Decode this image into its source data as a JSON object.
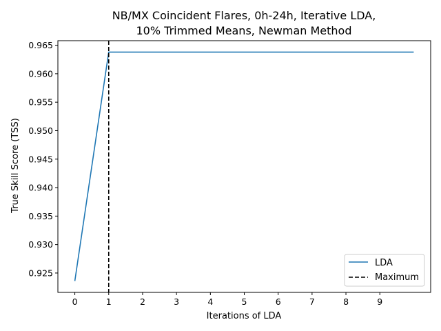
{
  "chart_data": {
    "type": "line",
    "title_lines": [
      "NB/MX Coincident Flares, 0h-24h, Iterative LDA,",
      "10% Trimmed Means, Newman Method"
    ],
    "xlabel": "Iterations of LDA",
    "ylabel": "True Skill Score (TSS)",
    "xlim": [
      -0.5,
      10.5
    ],
    "ylim": [
      0.9216,
      0.9658
    ],
    "x_ticks": [
      0,
      1,
      2,
      3,
      4,
      5,
      6,
      7,
      8,
      9
    ],
    "x_tick_labels": [
      "0",
      "1",
      "2",
      "3",
      "4",
      "5",
      "6",
      "7",
      "8",
      "9"
    ],
    "y_ticks": [
      0.925,
      0.93,
      0.935,
      0.94,
      0.945,
      0.95,
      0.955,
      0.96,
      0.965
    ],
    "y_tick_labels": [
      "0.925",
      "0.930",
      "0.935",
      "0.940",
      "0.945",
      "0.950",
      "0.955",
      "0.960",
      "0.965"
    ],
    "series": [
      {
        "name": "LDA",
        "color": "#1f77b4",
        "style": "solid",
        "x": [
          0,
          1,
          2,
          3,
          4,
          5,
          6,
          7,
          8,
          9,
          10
        ],
        "y": [
          0.9236,
          0.9638,
          0.9638,
          0.9638,
          0.9638,
          0.9638,
          0.9638,
          0.9638,
          0.9638,
          0.9638,
          0.9638
        ]
      }
    ],
    "vline": {
      "name": "Maximum",
      "x": 1,
      "color": "#000000",
      "style": "dashed"
    },
    "legend": {
      "position": "lower-right",
      "entries": [
        "LDA",
        "Maximum"
      ]
    },
    "grid": false
  }
}
